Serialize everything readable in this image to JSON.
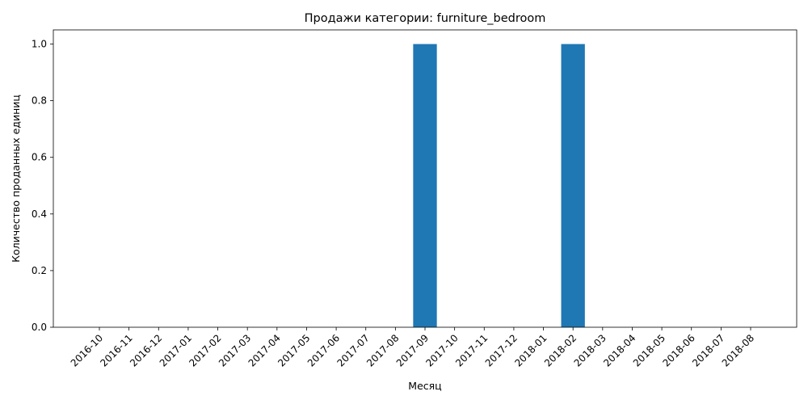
{
  "chart_data": {
    "type": "bar",
    "title": "Продажи категории: furniture_bedroom",
    "xlabel": "Месяц",
    "ylabel": "Количество проданных единиц",
    "categories": [
      "2016-10",
      "2016-11",
      "2016-12",
      "2017-01",
      "2017-02",
      "2017-03",
      "2017-04",
      "2017-05",
      "2017-06",
      "2017-07",
      "2017-08",
      "2017-09",
      "2017-10",
      "2017-11",
      "2017-12",
      "2018-01",
      "2018-02",
      "2018-03",
      "2018-04",
      "2018-05",
      "2018-06",
      "2018-07",
      "2018-08"
    ],
    "values": [
      0,
      0,
      0,
      0,
      0,
      0,
      0,
      0,
      0,
      0,
      0,
      1,
      0,
      0,
      0,
      0,
      1,
      0,
      0,
      0,
      0,
      0,
      0
    ],
    "ylim": [
      0,
      1.05
    ],
    "yticks": [
      "0.0",
      "0.2",
      "0.4",
      "0.6",
      "0.8",
      "1.0"
    ],
    "grid": false,
    "colors": {
      "bar": "#1f77b4",
      "axis": "#000000"
    }
  }
}
